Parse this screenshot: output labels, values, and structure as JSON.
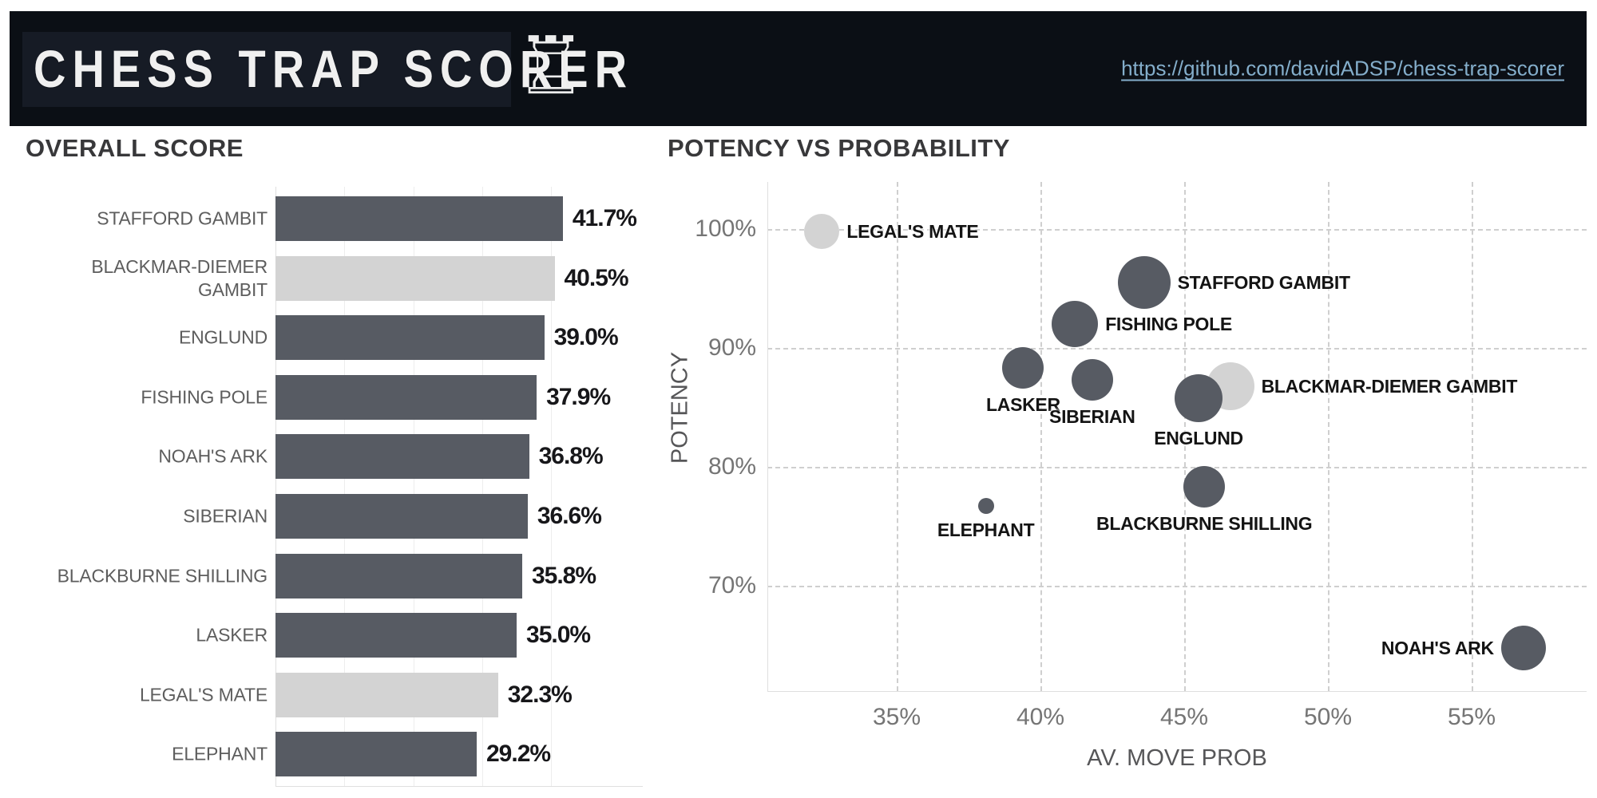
{
  "header": {
    "title": "CHESS TRAP SCORER",
    "rook_glyph": "♖",
    "link_text": "https://github.com/davidADSP/chess-trap-scorer"
  },
  "colors": {
    "header_bg": "#0b0f15",
    "header_panel": "#161b25",
    "link": "#84aecb",
    "bar_dark": "#575b63",
    "bar_light": "#d3d3d3",
    "grid_solid": "#ededed",
    "grid_dashed": "#cfcfcf"
  },
  "chart_data": [
    {
      "type": "bar",
      "title": "OVERALL SCORE",
      "orientation": "horizontal",
      "categories": [
        "STAFFORD GAMBIT",
        "BLACKMAR-DIEMER GAMBIT",
        "ENGLUND",
        "FISHING POLE",
        "NOAH'S ARK",
        "SIBERIAN",
        "BLACKBURNE SHILLING",
        "LASKER",
        "LEGAL'S MATE",
        "ELEPHANT"
      ],
      "values": [
        41.7,
        40.5,
        39.0,
        37.9,
        36.8,
        36.6,
        35.8,
        35.0,
        32.3,
        29.2
      ],
      "value_labels": [
        "41.7%",
        "40.5%",
        "39.0%",
        "37.9%",
        "36.8%",
        "36.6%",
        "35.8%",
        "35.0%",
        "32.3%",
        "29.2%"
      ],
      "highlighted_light": [
        false,
        true,
        false,
        false,
        false,
        false,
        false,
        false,
        true,
        false
      ],
      "xlim": [
        0,
        50
      ],
      "grid_values": [
        10,
        20,
        30,
        40
      ]
    },
    {
      "type": "scatter",
      "title": "POTENCY VS PROBABILITY",
      "xlabel": "AV. MOVE PROB",
      "ylabel": "POTENCY",
      "x_range": [
        30.5,
        59.0
      ],
      "y_range": [
        61.1,
        104.0
      ],
      "x_ticks": [
        {
          "value": 35,
          "label": "35%"
        },
        {
          "value": 40,
          "label": "40%"
        },
        {
          "value": 45,
          "label": "45%"
        },
        {
          "value": 50,
          "label": "50%"
        },
        {
          "value": 55,
          "label": "55%"
        }
      ],
      "y_ticks": [
        {
          "value": 100,
          "label": "100%"
        },
        {
          "value": 90,
          "label": "90%"
        },
        {
          "value": 80,
          "label": "80%"
        },
        {
          "value": 70,
          "label": "70%"
        }
      ],
      "points": [
        {
          "label": "LEGAL'S MATE",
          "x": 32.4,
          "y": 99.8,
          "r": 22,
          "shade": "light",
          "label_side": "right"
        },
        {
          "label": "STAFFORD GAMBIT",
          "x": 43.6,
          "y": 95.5,
          "r": 33,
          "shade": "dark",
          "label_side": "right"
        },
        {
          "label": "FISHING POLE",
          "x": 41.2,
          "y": 92.0,
          "r": 29,
          "shade": "dark",
          "label_side": "right"
        },
        {
          "label": "LASKER",
          "x": 39.4,
          "y": 88.3,
          "r": 26,
          "shade": "dark",
          "label_side": "below"
        },
        {
          "label": "SIBERIAN",
          "x": 41.8,
          "y": 87.3,
          "r": 26,
          "shade": "dark",
          "label_side": "below"
        },
        {
          "label": "BLACKMAR-DIEMER GAMBIT",
          "x": 46.6,
          "y": 86.8,
          "r": 30,
          "shade": "light",
          "label_side": "right"
        },
        {
          "label": "ENGLUND",
          "x": 45.5,
          "y": 85.8,
          "r": 30,
          "shade": "dark",
          "label_side": "below"
        },
        {
          "label": "BLACKBURNE SHILLING",
          "x": 45.7,
          "y": 78.3,
          "r": 26,
          "shade": "dark",
          "label_side": "below"
        },
        {
          "label": "ELEPHANT",
          "x": 38.1,
          "y": 76.7,
          "r": 10,
          "shade": "dark",
          "label_side": "below"
        },
        {
          "label": "NOAH'S ARK",
          "x": 56.8,
          "y": 64.7,
          "r": 28,
          "shade": "dark",
          "label_side": "left"
        }
      ]
    }
  ]
}
